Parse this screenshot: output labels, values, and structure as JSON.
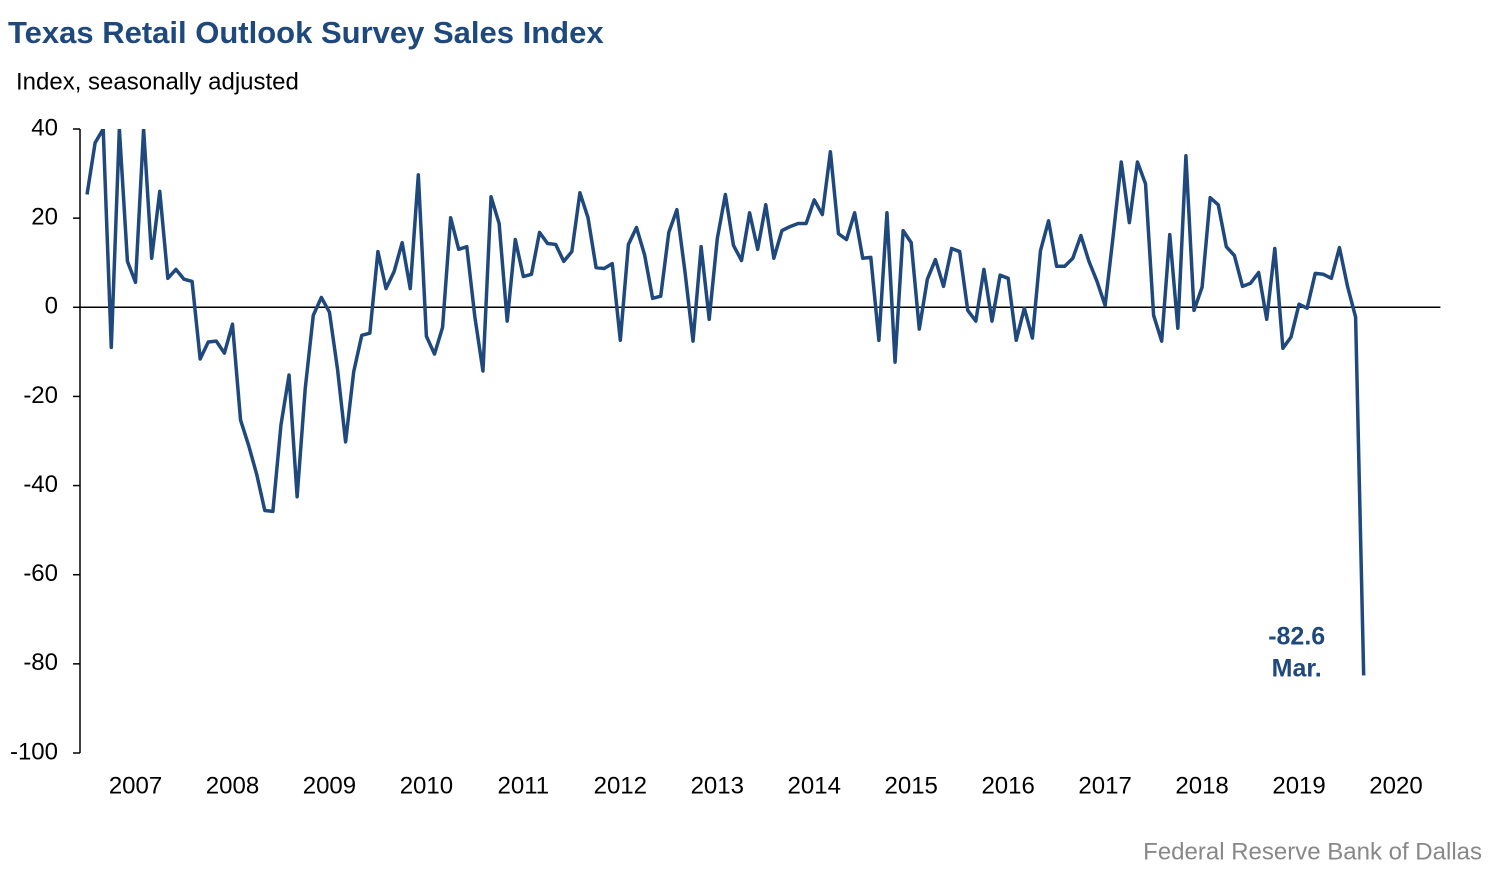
{
  "chart_data": {
    "type": "line",
    "title": "Texas Retail Outlook Survey Sales Index",
    "y_label": "Index, seasonally adjusted",
    "source": "Federal Reserve Bank of Dallas",
    "annotation": "Mar.",
    "categories": [
      null,
      null,
      null,
      null,
      null,
      null,
      "2007",
      null,
      null,
      null,
      null,
      null,
      null,
      null,
      null,
      null,
      null,
      null,
      "2008",
      null,
      null,
      null,
      null,
      null,
      null,
      null,
      null,
      null,
      null,
      null,
      "2009",
      null,
      null,
      null,
      null,
      null,
      null,
      null,
      null,
      null,
      null,
      null,
      "2010",
      null,
      null,
      null,
      null,
      null,
      null,
      null,
      null,
      null,
      null,
      null,
      "2011",
      null,
      null,
      null,
      null,
      null,
      null,
      null,
      null,
      null,
      null,
      null,
      "2012",
      null,
      null,
      null,
      null,
      null,
      null,
      null,
      null,
      null,
      null,
      null,
      "2013",
      null,
      null,
      null,
      null,
      null,
      null,
      null,
      null,
      null,
      null,
      null,
      "2014",
      null,
      null,
      null,
      null,
      null,
      null,
      null,
      null,
      null,
      null,
      null,
      "2015",
      null,
      null,
      null,
      null,
      null,
      null,
      null,
      null,
      null,
      null,
      null,
      "2016",
      null,
      null,
      null,
      null,
      null,
      null,
      null,
      null,
      null,
      null,
      null,
      "2017",
      null,
      null,
      null,
      null,
      null,
      null,
      null,
      null,
      null,
      null,
      null,
      "2018",
      null,
      null,
      null,
      null,
      null,
      null,
      null,
      null,
      null,
      null,
      null,
      "2019",
      null,
      null,
      null,
      null,
      null,
      null,
      null,
      null,
      null,
      null,
      null,
      "2020",
      null,
      null,
      null,
      null,
      null
    ],
    "series": [
      {
        "name": "Sales Index",
        "color": "#1f497d",
        "values": [
          25.3,
          36.9,
          40,
          -9,
          40,
          10.3,
          5.6,
          40,
          11,
          26,
          6.5,
          8.5,
          6.3,
          5.8,
          -11.6,
          -7.8,
          -7.6,
          -10.3,
          -3.8,
          -25.3,
          -31,
          -37.5,
          -45.6,
          -45.8,
          -26.4,
          -15.2,
          -42.5,
          -18.3,
          -1.8,
          2.2,
          -1.1,
          -13.9,
          -30.2,
          -14.5,
          -6.3,
          -5.8,
          12.5,
          4.2,
          8,
          14.5,
          4.2,
          29.7,
          -6.5,
          -10.5,
          -4.5,
          20.1,
          13,
          13.6,
          -2.2,
          -14.3,
          24.8,
          18.8,
          -3.1,
          15.2,
          6.9,
          7.4,
          16.8,
          14.3,
          14.1,
          10.3,
          12.5,
          25.7,
          20.1,
          8.9,
          8.7,
          9.8,
          -7.4,
          14.1,
          17.9,
          11.8,
          2,
          2.5,
          16.8,
          21.9,
          8,
          -7.6,
          13.6,
          -2.7,
          15.4,
          25.3,
          13.9,
          10.5,
          21.2,
          13,
          23,
          11,
          17.2,
          18.1,
          18.8,
          18.8,
          24.1,
          20.8,
          34.9,
          16.5,
          15.2,
          21.2,
          11,
          11.2,
          -7.4,
          21.2,
          -12.3,
          17.2,
          14.5,
          -4.9,
          6.3,
          10.7,
          4.7,
          13.2,
          12.5,
          -0.7,
          -3.1,
          8.5,
          -3.1,
          7.2,
          6.5,
          -7.4,
          -0.2,
          -6.9,
          12.7,
          19.4,
          9.2,
          9.2,
          11,
          16.1,
          10.3,
          5.8,
          0.4,
          16.1,
          32.6,
          19,
          32.6,
          27.7,
          -1.8,
          -7.6,
          16.3,
          -4.7,
          34,
          -0.7,
          4.5,
          24.6,
          23,
          13.6,
          11.6,
          4.7,
          5.4,
          7.8,
          -2.7,
          13.2,
          -9.2,
          -6.7,
          0.7,
          -0.2,
          7.6,
          7.4,
          6.5,
          13.4,
          4.7,
          -2.2,
          -82.6,
          null,
          null,
          null,
          null,
          null,
          null,
          null,
          null,
          null
        ]
      }
    ],
    "ylim": [
      -100,
      40
    ],
    "yticks": [
      -100,
      -80,
      -60,
      -40,
      -20,
      0,
      20,
      40
    ],
    "grid": false
  }
}
